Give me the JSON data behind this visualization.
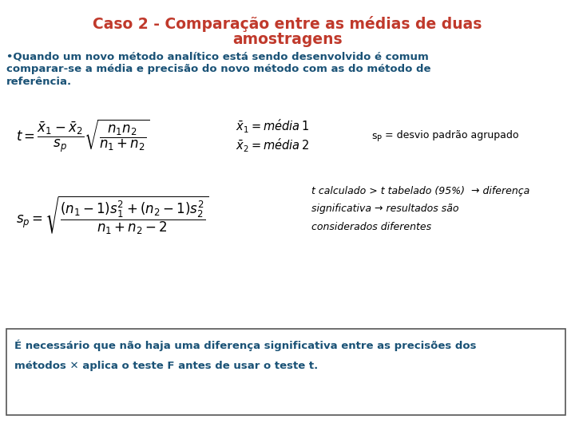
{
  "title_line1": "Caso 2 - Comparação entre as médias de duas",
  "title_line2": "amostragens",
  "title_color": "#c0392b",
  "body_text1": "•Quando um novo método analítico está sendo desenvolvido é comum",
  "body_text2": "comparar-se a média e precisão do novo método com as do método de",
  "body_text3": "referência.",
  "body_color": "#1a5276",
  "sp_label_pre": "s",
  "sp_label_sub": "P",
  "sp_label_post": " = desvio padrão agrupado",
  "italic_text1": "t calculado > t tabelado (95%)  → diferença",
  "italic_text2": "significativa → resultados são",
  "italic_text3": "considerados diferentes",
  "box_text1": "É necessário que não haja uma diferença significativa entre as precisões dos",
  "box_text2": "métodos ✕ aplica o teste F antes de usar o teste t.",
  "box_color": "#1a5276",
  "background": "#ffffff",
  "formula_color": "#000000"
}
